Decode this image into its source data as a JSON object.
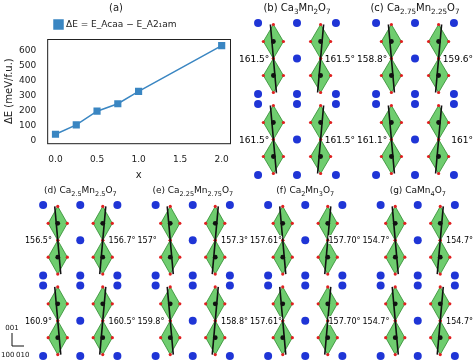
{
  "chart_data": {
    "type": "line",
    "title": "(a)",
    "xlabel": "x",
    "ylabel": "ΔE (meV/f.u.)",
    "x": [
      0,
      0.25,
      0.5,
      0.75,
      1.0,
      2.0
    ],
    "series": [
      {
        "name": "ΔE = E_Acaa − E_A2₁am",
        "color": "#3a86c2",
        "marker": "square",
        "values": [
          40,
          103,
          195,
          245,
          328,
          635
        ]
      }
    ],
    "xlim": [
      -0.1,
      2.1
    ],
    "xticks": [
      {
        "value": 0,
        "label": "0.0"
      },
      {
        "value": 0.5,
        "label": "0.5"
      },
      {
        "value": 1,
        "label": "1.0"
      },
      {
        "value": 1.5,
        "label": "1.5"
      },
      {
        "value": 2,
        "label": "2.0"
      }
    ],
    "ylim": [
      -20,
      680
    ],
    "yticks": [
      0,
      100,
      200,
      300,
      400,
      500,
      600
    ],
    "grid": false
  },
  "structures": [
    {
      "label": "(b)",
      "formula": "Ca3Mn2O7",
      "angles": [
        [
          "161.5°",
          "161.5°"
        ],
        [
          "161.5°",
          "161.5°"
        ]
      ]
    },
    {
      "label": "(c)",
      "formula": "Ca2.75Mn2.25O7",
      "angles": [
        [
          "158.8°",
          "159.6°"
        ],
        [
          "161.1°",
          "161°"
        ]
      ]
    },
    {
      "label": "(d)",
      "formula": "Ca2.5Mn2.5O7",
      "angles": [
        [
          "156.5°",
          "156.7°"
        ],
        [
          "160.9°",
          "160.5°"
        ]
      ]
    },
    {
      "label": "(e)",
      "formula": "Ca2.25Mn2.75O7",
      "angles": [
        [
          "157°",
          "157.3°"
        ],
        [
          "159.8°",
          "158.8°"
        ]
      ]
    },
    {
      "label": "(f)",
      "formula": "Ca2Mn3O7",
      "angles": [
        [
          "157.61°",
          "157.70°"
        ],
        [
          "157.61°",
          "157.70°"
        ]
      ]
    },
    {
      "label": "(g)",
      "formula": "CaMn4O7",
      "angles": [
        [
          "154.7°",
          "154.7°"
        ],
        [
          "154.7°",
          "154.7°"
        ]
      ]
    }
  ],
  "axes_triad": {
    "up": "001",
    "left": "100",
    "right": "010"
  }
}
